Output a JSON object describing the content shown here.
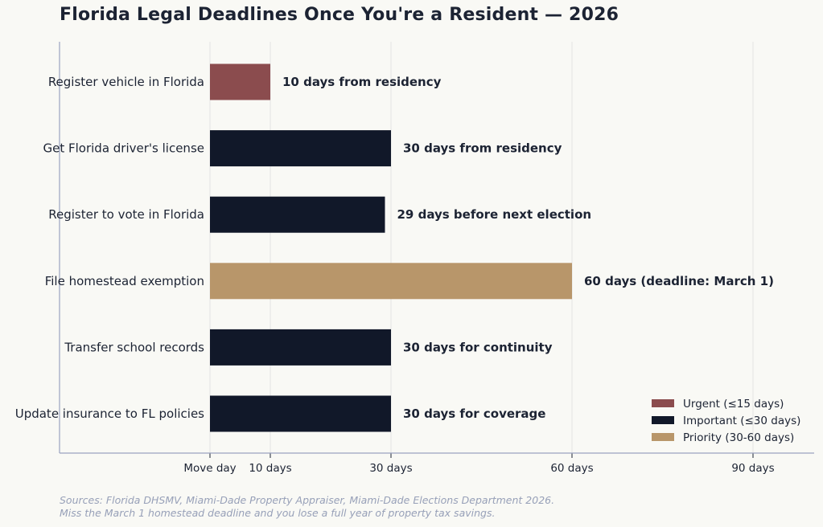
{
  "chart_data": {
    "type": "bar",
    "orientation": "horizontal",
    "title": "Florida Legal Deadlines Once You're a Resident — 2026",
    "categories": [
      "Register vehicle in Florida",
      "Get Florida driver's license",
      "Register to vote in Florida",
      "File homestead exemption",
      "Transfer school records",
      "Update insurance to FL policies"
    ],
    "values": [
      10,
      30,
      29,
      60,
      30,
      30
    ],
    "groups": [
      "urgent",
      "important",
      "important",
      "priority",
      "important",
      "important"
    ],
    "data_labels": [
      "10 days from residency",
      "30 days from residency",
      "29 days before next election",
      "60 days (deadline: March 1)",
      "30 days for continuity",
      "30 days for coverage"
    ],
    "xticks": [
      {
        "value": 0,
        "label": "Move day"
      },
      {
        "value": 10,
        "label": "10 days"
      },
      {
        "value": 30,
        "label": "30 days"
      },
      {
        "value": 60,
        "label": "60 days"
      },
      {
        "value": 90,
        "label": "90 days"
      }
    ],
    "xlim": [
      -25,
      100
    ],
    "grid": "vertical",
    "legend": {
      "placement": "lower-right",
      "entries": [
        {
          "key": "urgent",
          "label": "Urgent (≤15 days)",
          "color": "#8b4c4e"
        },
        {
          "key": "important",
          "label": "Important (≤30 days)",
          "color": "#111829"
        },
        {
          "key": "priority",
          "label": "Priority (30-60 days)",
          "color": "#b8966a"
        }
      ]
    }
  },
  "footer": {
    "line1": "Sources: Florida DHSMV, Miami-Dade Property Appraiser, Miami-Dade Elections Department 2026.",
    "line2": "Miss the March 1 homestead deadline and you lose a full year of property tax savings."
  }
}
